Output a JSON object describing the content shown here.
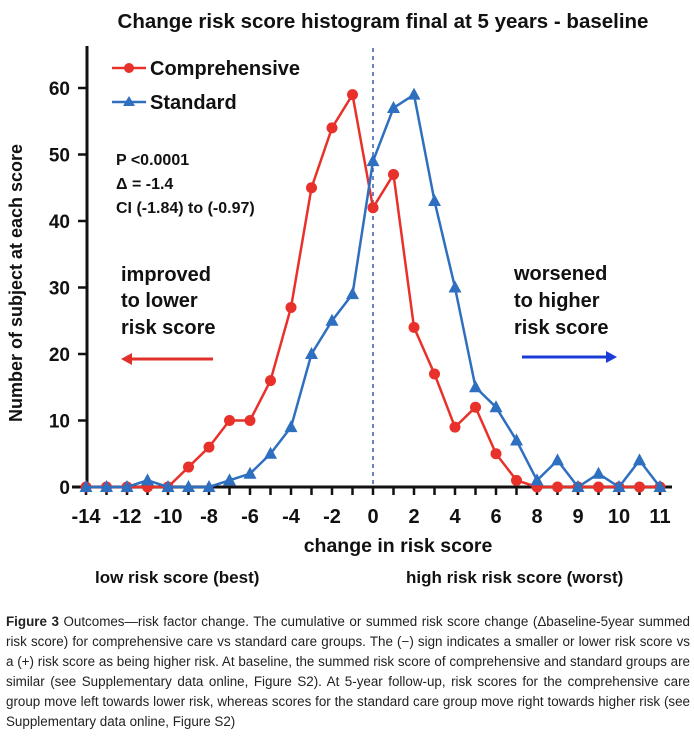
{
  "chart_data": {
    "type": "line",
    "title": "Change risk score histogram final at 5 years - baseline",
    "xlabel": "change in risk score",
    "ylabel": "Number of subject at each score",
    "ylim": [
      0,
      65
    ],
    "yticks": [
      0,
      10,
      20,
      30,
      40,
      50,
      60
    ],
    "x_tick_labels": [
      {
        "index": 0,
        "label": "-14"
      },
      {
        "index": 2,
        "label": "-12"
      },
      {
        "index": 4,
        "label": "-10"
      },
      {
        "index": 6,
        "label": "-8"
      },
      {
        "index": 8,
        "label": "-6"
      },
      {
        "index": 10,
        "label": "-4"
      },
      {
        "index": 12,
        "label": "-2"
      },
      {
        "index": 14,
        "label": "0"
      },
      {
        "index": 16,
        "label": "2"
      },
      {
        "index": 18,
        "label": "4"
      },
      {
        "index": 20,
        "label": "6"
      },
      {
        "index": 22,
        "label": "8"
      },
      {
        "index": 24,
        "label": "9"
      },
      {
        "index": 26,
        "label": "10"
      },
      {
        "index": 28,
        "label": "11"
      }
    ],
    "x_count": 29,
    "zero_line_index": 14,
    "grid": false,
    "legend_position": "top-left",
    "series": [
      {
        "name": "Comprehensive",
        "color": "#e8312a",
        "marker": "circle",
        "values": [
          0,
          0,
          0,
          0,
          0,
          3,
          6,
          10,
          10,
          16,
          27,
          45,
          54,
          59,
          42,
          47,
          24,
          17,
          9,
          12,
          5,
          1,
          0,
          0,
          0,
          0,
          0,
          0,
          0
        ]
      },
      {
        "name": "Standard",
        "color": "#2e6fc0",
        "marker": "triangle",
        "values": [
          0,
          0,
          0,
          1,
          0,
          0,
          0,
          1,
          2,
          5,
          9,
          20,
          25,
          29,
          49,
          57,
          59,
          43,
          30,
          15,
          12,
          7,
          1,
          4,
          0,
          2,
          0,
          4,
          0
        ]
      }
    ],
    "annotations": {
      "stats": [
        "P <0.0001",
        "Δ = -1.4",
        "CI (-1.84) to (-0.97)"
      ],
      "left_note": [
        "improved",
        "to lower",
        "risk score"
      ],
      "right_note": [
        "worsened",
        "to higher",
        "risk score"
      ],
      "left_arrow_color": "#e0302a",
      "right_arrow_color": "#1a3bd6",
      "low_label": "low risk score (best)",
      "high_label": "high risk risk score (worst)"
    }
  },
  "caption": {
    "label": "Figure 3",
    "text": " Outcomes—risk factor change. The cumulative or summed risk score change (Δbaseline-5year summed risk score) for comprehensive care vs standard care groups. The (−) sign indicates a smaller or lower risk score vs a (+) risk score as being higher risk. At baseline, the summed risk score of comprehensive and standard groups are similar (see Supplementary data online, Figure S2). At 5-year follow-up, risk scores for the comprehensive care group move left towards lower risk, whereas scores for the standard care group move right towards higher risk (see Supplementary data online, Figure  S2)"
  }
}
